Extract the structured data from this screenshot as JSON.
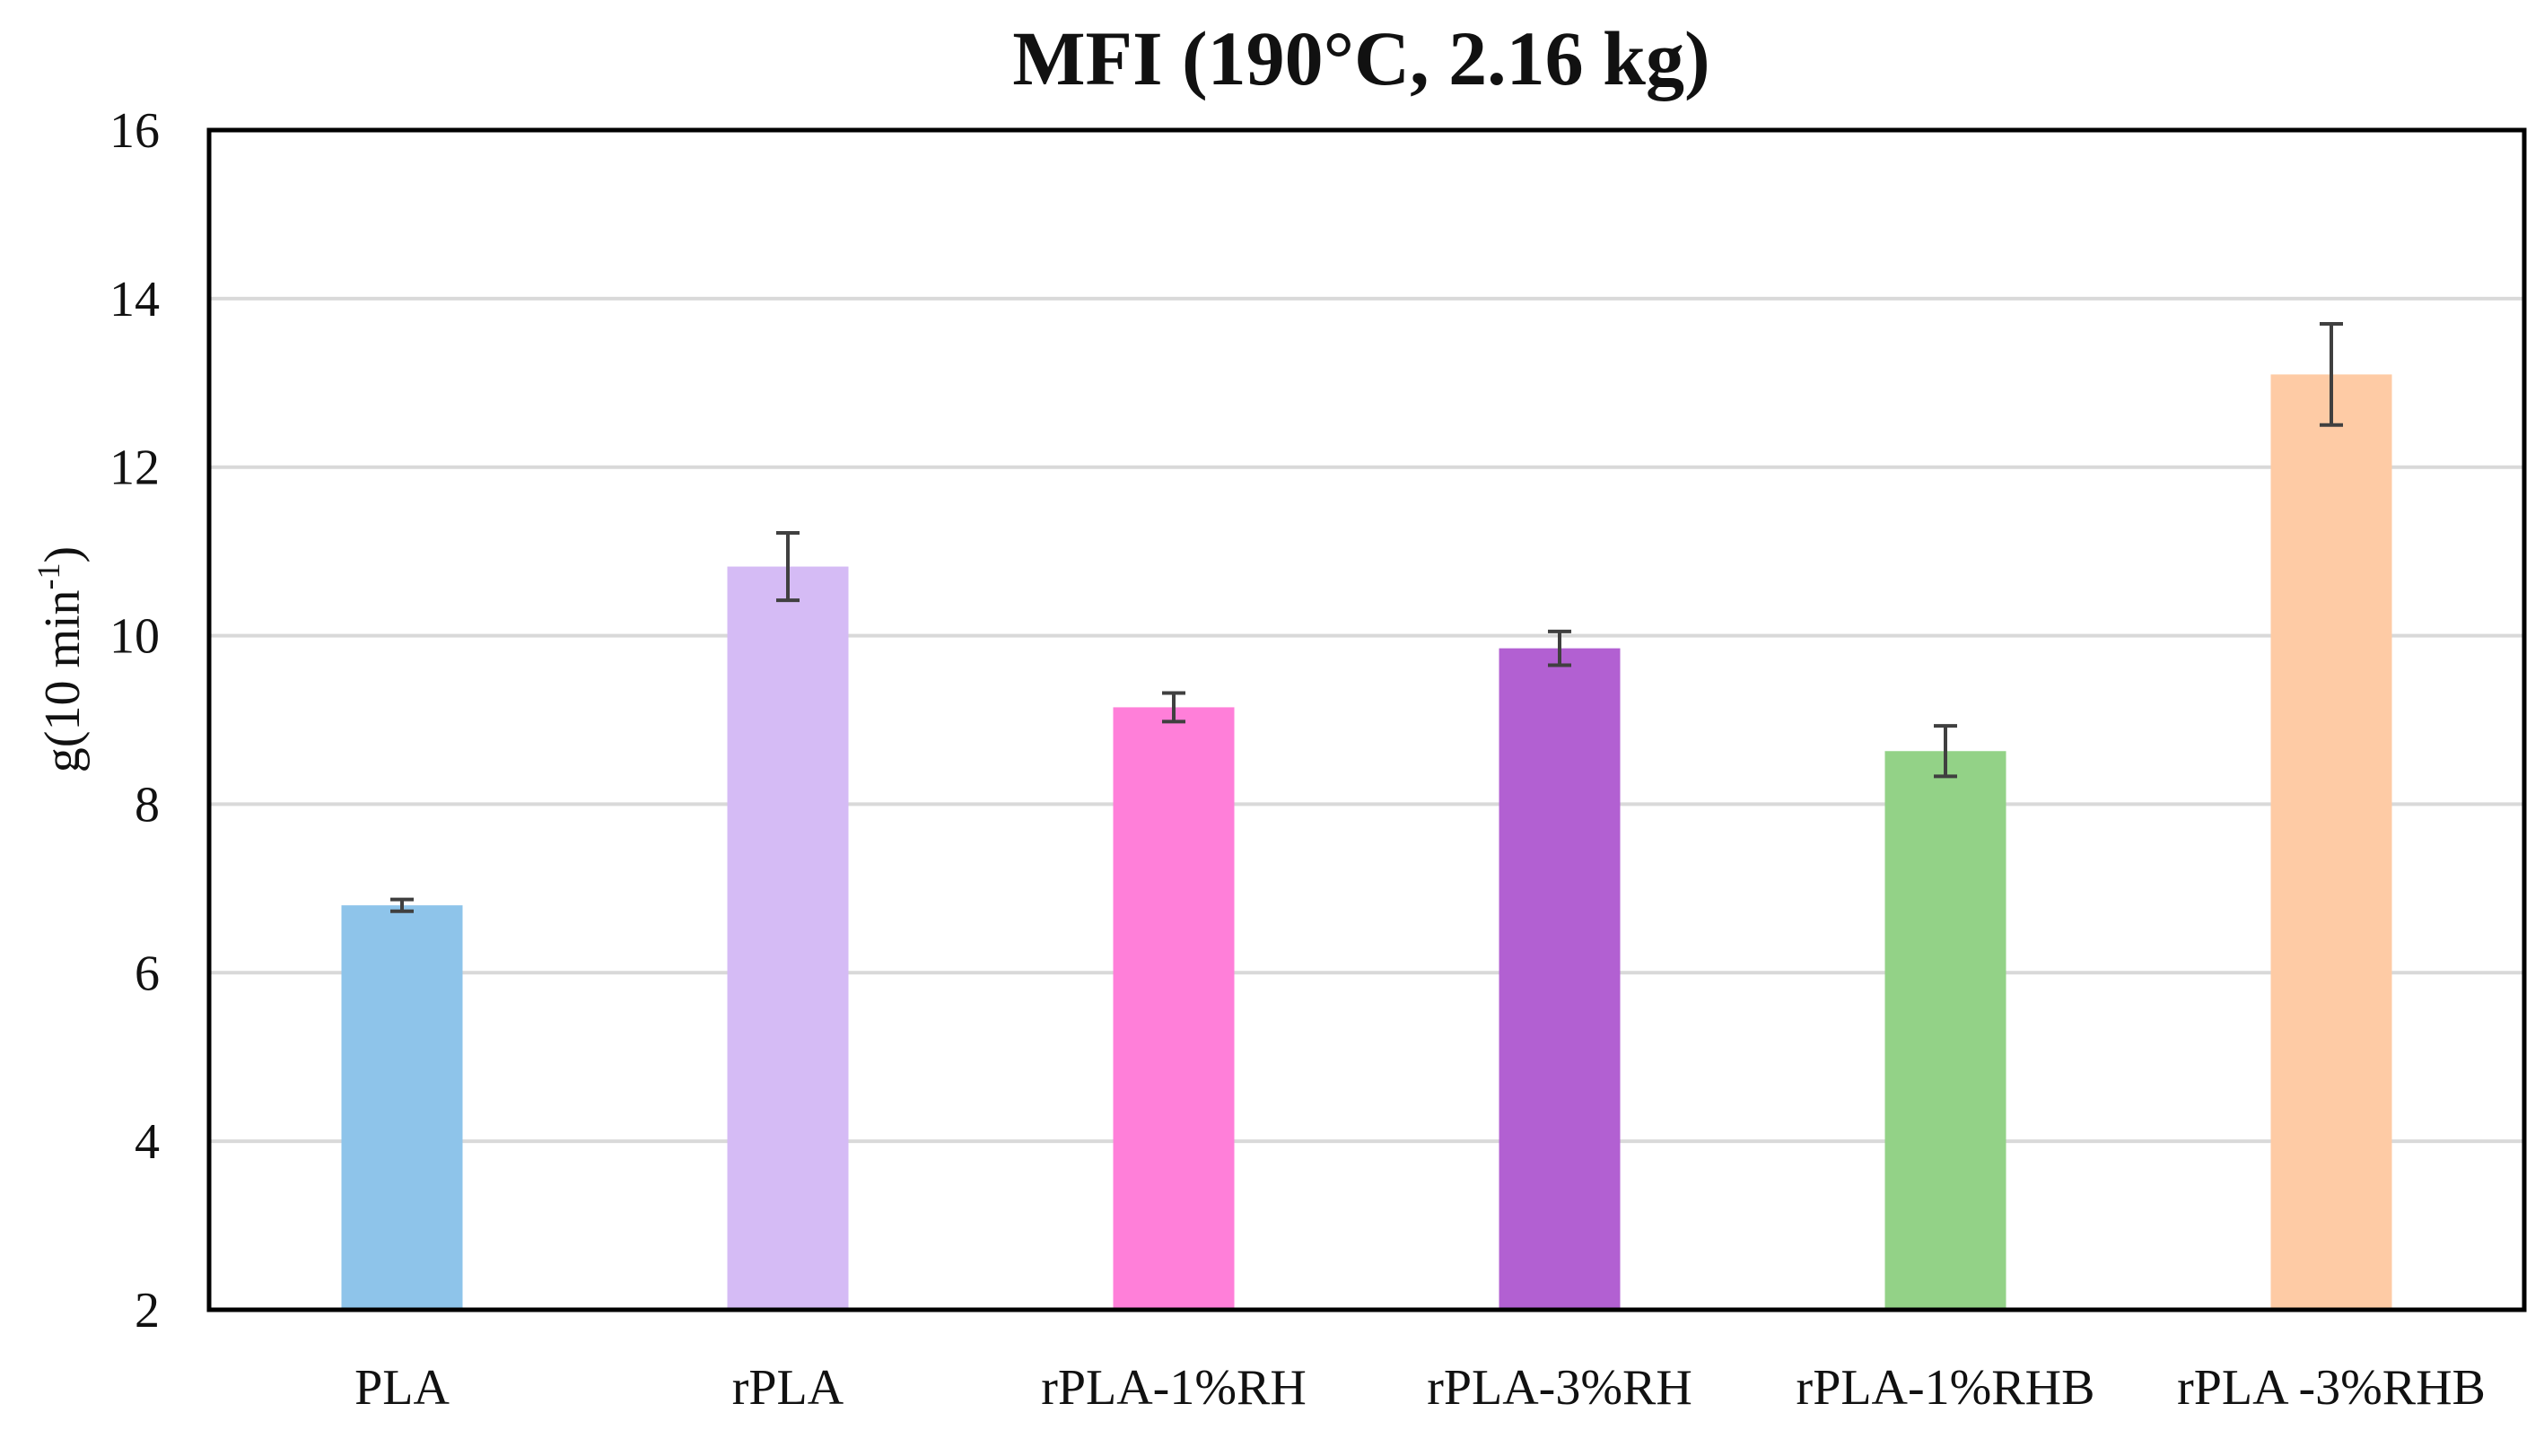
{
  "chart_data": {
    "type": "bar",
    "title": "MFI (190°C, 2.16 kg)",
    "ylabel": "g(10 min",
    "ylabel_superscript": "-1",
    "ylabel_close": ")",
    "xlabel": "",
    "ylim": [
      2,
      16
    ],
    "yticks": [
      2,
      4,
      6,
      8,
      10,
      12,
      14,
      16
    ],
    "grid": true,
    "categories": [
      "PLA",
      "rPLA",
      "rPLA-1%RH",
      "rPLA-3%RH",
      "rPLA-1%RHB",
      "rPLA -3%RHB"
    ],
    "values": [
      6.8,
      10.82,
      9.15,
      9.85,
      8.63,
      13.1
    ],
    "errors": [
      0.07,
      0.4,
      0.17,
      0.2,
      0.3,
      0.6
    ],
    "colors": [
      "#8ec4ea",
      "#d5bbf5",
      "#ff7fd9",
      "#b260d2",
      "#93d287",
      "#fecba5"
    ],
    "error_bar_color": "#404040",
    "grid_color": "#d9d9d9",
    "axis_color": "#000000"
  }
}
